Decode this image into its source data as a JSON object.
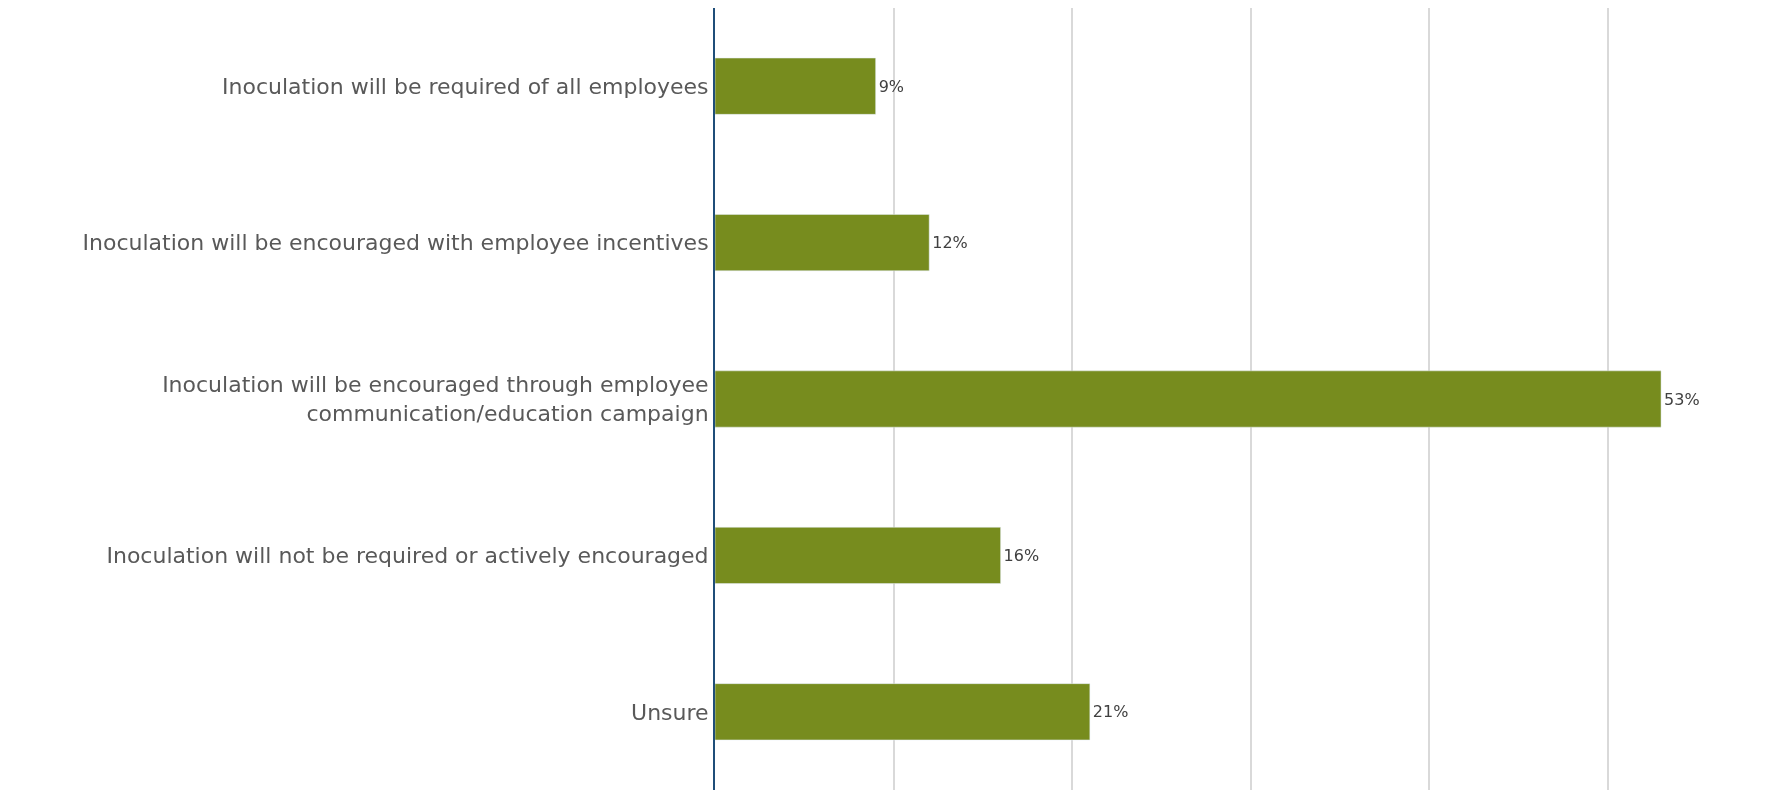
{
  "chart_data": {
    "type": "bar",
    "orientation": "horizontal",
    "categories": [
      "Inoculation will be required of all employees",
      "Inoculation will be encouraged with employee incentives",
      "Inoculation will be encouraged through employee\ncommunication/education campaign",
      "Inoculation will not be required or actively encouraged",
      "Unsure"
    ],
    "values": [
      9,
      12,
      53,
      16,
      21
    ],
    "value_labels": [
      "9%",
      "12%",
      "53%",
      "16%",
      "21%"
    ],
    "color": "#778c1e",
    "xlim": [
      0,
      60
    ],
    "xticks": [
      {
        "value": 0,
        "label": null
      },
      {
        "value": 10,
        "label": null
      },
      {
        "value": 20,
        "label": null
      },
      {
        "value": 30,
        "label": null
      },
      {
        "value": 40,
        "label": null
      },
      {
        "value": 50,
        "label": null
      }
    ],
    "grid": "x",
    "tick_labels": "y",
    "legend": false
  }
}
